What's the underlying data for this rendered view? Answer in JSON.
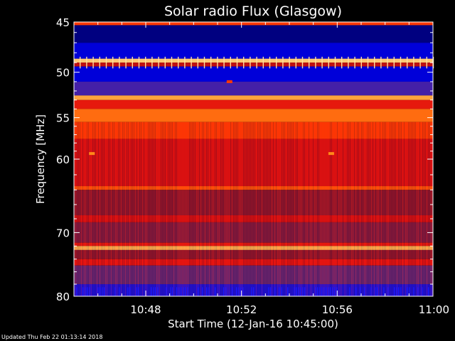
{
  "updated_text": "Updated Thu Feb 22 01:13:14 2018",
  "chart_data": {
    "type": "heatmap",
    "title": "Solar radio Flux (Glasgow)",
    "xlabel": "Start Time (12-Jan-16 10:45:00)",
    "ylabel": "Frequency [MHz]",
    "xlim": [
      "10:45",
      "11:00"
    ],
    "ylim": [
      45,
      80
    ],
    "y_scale": "log",
    "y_reversed": true,
    "x_ticks": [
      "10:48",
      "10:52",
      "10:56",
      "11:00"
    ],
    "y_ticks": [
      45,
      50,
      55,
      60,
      70,
      80
    ],
    "colormap": [
      "#000080",
      "#0000ff",
      "#5a2a8a",
      "#a01010",
      "#e01010",
      "#ff3c00",
      "#ff8c1a",
      "#ffd88a"
    ],
    "bands": [
      {
        "from": 45.0,
        "to": 45.3,
        "level": 0.7
      },
      {
        "from": 45.3,
        "to": 47.0,
        "level": 0.0
      },
      {
        "from": 47.0,
        "to": 48.6,
        "level": 0.1
      },
      {
        "from": 48.6,
        "to": 49.0,
        "level": 0.97
      },
      {
        "from": 49.0,
        "to": 49.4,
        "level": 0.5
      },
      {
        "from": 49.4,
        "to": 51.0,
        "level": 0.1
      },
      {
        "from": 51.0,
        "to": 52.5,
        "level": 0.25
      },
      {
        "from": 52.5,
        "to": 53.0,
        "level": 0.9
      },
      {
        "from": 53.0,
        "to": 54.0,
        "level": 0.6
      },
      {
        "from": 54.0,
        "to": 55.5,
        "level": 0.8
      },
      {
        "from": 55.5,
        "to": 57.5,
        "level": 0.7
      },
      {
        "from": 57.5,
        "to": 63.5,
        "level": 0.55
      },
      {
        "from": 63.5,
        "to": 64.0,
        "level": 0.75
      },
      {
        "from": 64.0,
        "to": 67.5,
        "level": 0.4
      },
      {
        "from": 67.5,
        "to": 68.5,
        "level": 0.55
      },
      {
        "from": 68.5,
        "to": 71.5,
        "level": 0.38
      },
      {
        "from": 71.5,
        "to": 72.0,
        "level": 0.6
      },
      {
        "from": 72.0,
        "to": 72.6,
        "level": 0.92
      },
      {
        "from": 72.6,
        "to": 74.0,
        "level": 0.4
      },
      {
        "from": 74.0,
        "to": 75.0,
        "level": 0.58
      },
      {
        "from": 75.0,
        "to": 78.0,
        "level": 0.32
      },
      {
        "from": 78.0,
        "to": 80.0,
        "level": 0.2
      }
    ],
    "features": [
      {
        "time": "10:45:45",
        "freq": 59.3,
        "level": 0.85
      },
      {
        "time": "10:55:45",
        "freq": 59.3,
        "level": 0.85
      },
      {
        "time": "10:51:30",
        "freq": 51.0,
        "level": 0.7
      }
    ]
  }
}
